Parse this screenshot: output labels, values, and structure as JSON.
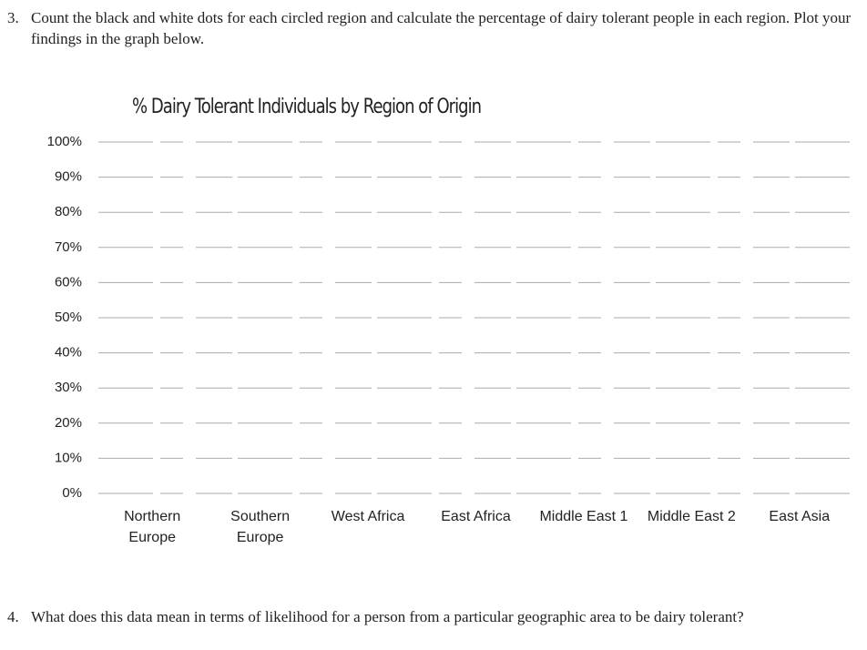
{
  "questions": [
    {
      "number": "3.",
      "text": "Count the black and white dots for each circled region and calculate the percentage of dairy tolerant people in each region. Plot your findings in the graph below."
    },
    {
      "number": "4.",
      "text": "What does this data mean in terms of likelihood for a person from a particular geographic area to be dairy tolerant?"
    }
  ],
  "chart_data": {
    "type": "bar",
    "title": "% Dairy Tolerant Individuals by Region of Origin",
    "categories": [
      "Northern Europe",
      "Southern Europe",
      "West Africa",
      "East Africa",
      "Middle East 1",
      "Middle East 2",
      "East Asia"
    ],
    "ylim": [
      0,
      100
    ],
    "yticks": [
      {
        "value": 0,
        "label": "0%"
      },
      {
        "value": 10,
        "label": "10%"
      },
      {
        "value": 20,
        "label": "20%"
      },
      {
        "value": 30,
        "label": "30%"
      },
      {
        "value": 40,
        "label": "40%"
      },
      {
        "value": 50,
        "label": "50%"
      },
      {
        "value": 60,
        "label": "60%"
      },
      {
        "value": 70,
        "label": "70%"
      },
      {
        "value": 80,
        "label": "80%"
      },
      {
        "value": 90,
        "label": "90%"
      },
      {
        "value": 100,
        "label": "100%"
      }
    ],
    "grid": true
  }
}
